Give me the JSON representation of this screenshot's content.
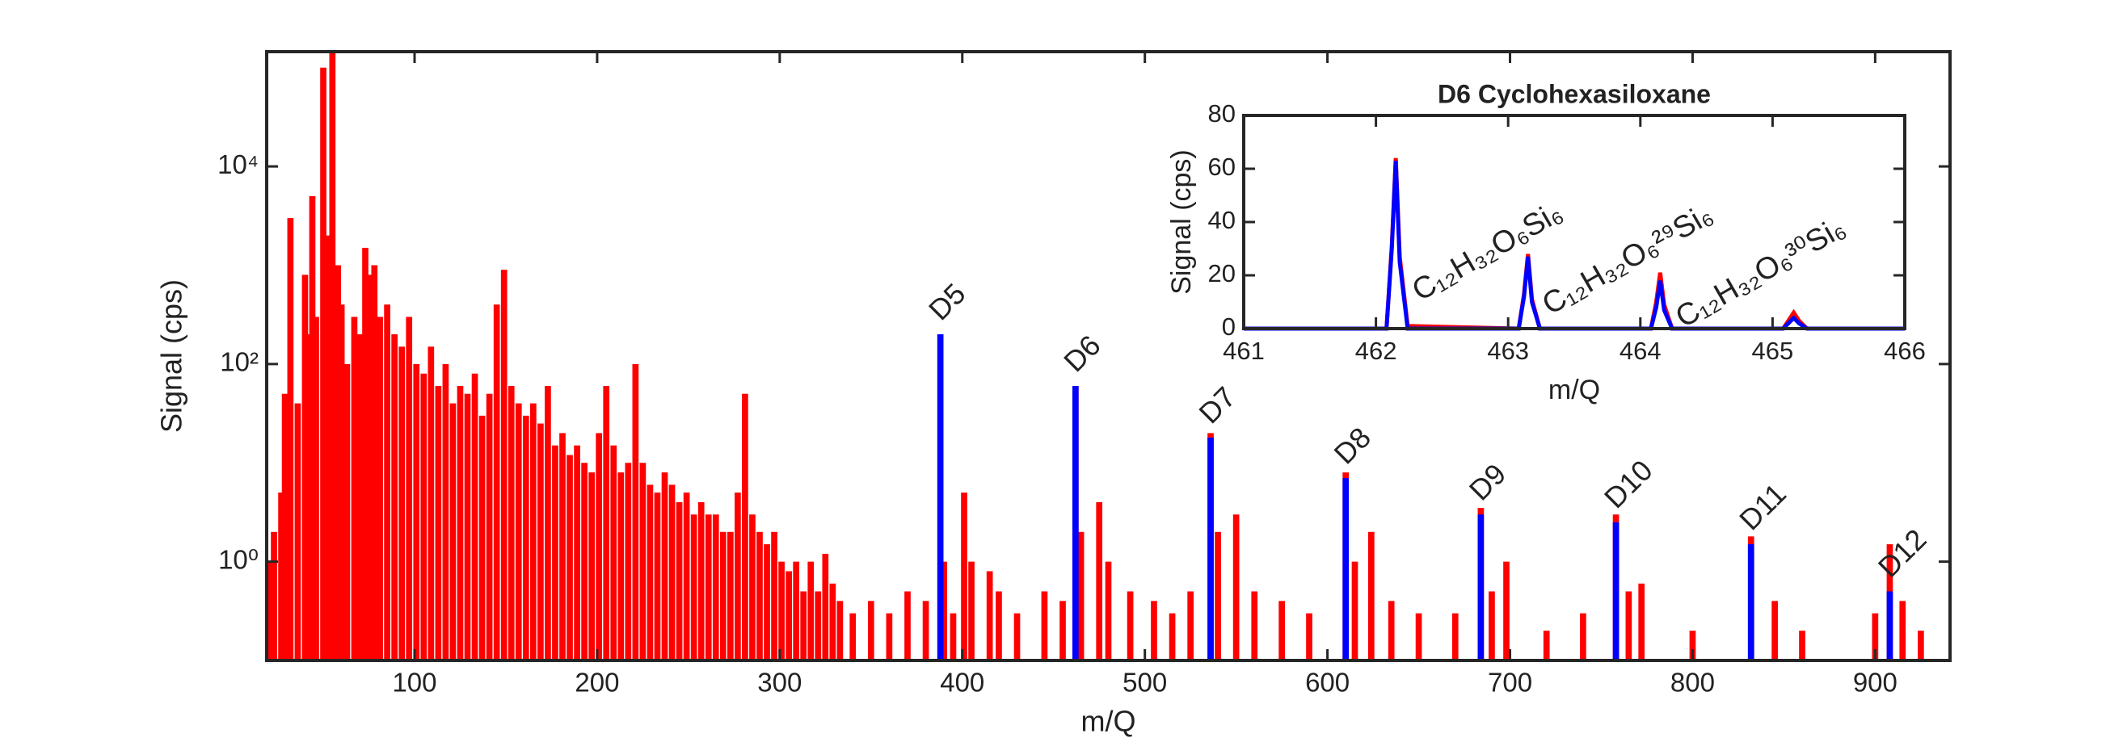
{
  "chart_data": [
    {
      "type": "bar",
      "xlabel": "m/Q",
      "ylabel": "Signal (cps)",
      "yscale": "log",
      "xlim": [
        19,
        941
      ],
      "ylim": [
        0.1,
        145000
      ],
      "xticks": [
        100,
        200,
        300,
        400,
        500,
        600,
        700,
        800,
        900
      ],
      "yticks": [
        {
          "value": 1,
          "label": "10⁰"
        },
        {
          "value": 100,
          "label": "10²"
        },
        {
          "value": 10000,
          "label": "10⁴"
        }
      ],
      "series": [
        {
          "color": "#ff0000",
          "x": [
            20,
            23,
            27,
            29,
            32,
            36,
            40,
            42,
            44,
            46,
            50,
            53,
            55,
            58,
            60,
            63,
            67,
            70,
            73,
            75,
            78,
            81,
            85,
            89,
            93,
            97,
            101,
            105,
            109,
            113,
            117,
            121,
            125,
            129,
            133,
            137,
            141,
            145,
            149,
            153,
            157,
            161,
            165,
            169,
            173,
            177,
            181,
            185,
            189,
            193,
            197,
            201,
            205,
            209,
            213,
            217,
            221,
            225,
            229,
            233,
            237,
            241,
            245,
            249,
            253,
            257,
            261,
            265,
            269,
            273,
            277,
            281,
            285,
            289,
            293,
            297,
            301,
            305,
            309,
            313,
            317,
            321,
            325,
            329,
            333,
            340,
            350,
            360,
            370,
            380,
            390,
            395,
            401,
            405,
            415,
            420,
            430,
            445,
            455,
            462,
            465,
            475,
            480,
            492,
            505,
            515,
            525,
            536,
            540,
            550,
            560,
            575,
            590,
            610,
            615,
            624,
            635,
            650,
            670,
            684,
            690,
            698,
            720,
            740,
            758,
            765,
            772,
            800,
            832,
            845,
            860,
            900,
            908,
            915,
            925
          ],
          "values": [
            1,
            2,
            5,
            50,
            3000,
            40,
            800,
            200,
            5000,
            300,
            100000,
            2000,
            140000,
            1000,
            400,
            100,
            300,
            200,
            1500,
            800,
            1000,
            300,
            400,
            200,
            150,
            300,
            100,
            80,
            150,
            60,
            100,
            40,
            60,
            50,
            80,
            30,
            50,
            400,
            900,
            60,
            40,
            30,
            40,
            25,
            60,
            15,
            20,
            12,
            15,
            10,
            8,
            20,
            60,
            15,
            8,
            10,
            100,
            10,
            6,
            5,
            8,
            6,
            4,
            5,
            3,
            4,
            3,
            3,
            2,
            2,
            5,
            50,
            3,
            2,
            1.5,
            2,
            1,
            0.8,
            1,
            0.5,
            1,
            0.5,
            1.2,
            0.6,
            0.4,
            0.3,
            0.4,
            0.3,
            0.5,
            0.4,
            1,
            0.3,
            5,
            1,
            0.8,
            0.5,
            0.3,
            0.5,
            0.4,
            60,
            2,
            4,
            1,
            0.5,
            0.4,
            0.3,
            0.5,
            20,
            2,
            3,
            0.5,
            0.4,
            0.3,
            8,
            1,
            2,
            0.4,
            0.3,
            0.3,
            3.5,
            0.5,
            1,
            0.2,
            0.3,
            3,
            0.5,
            0.6,
            0.2,
            1.8,
            0.4,
            0.2,
            0.3,
            1.5,
            0.4,
            0.2
          ]
        },
        {
          "color": "#0000ff",
          "x": [
            388,
            462,
            536,
            610,
            684,
            758,
            832,
            908
          ],
          "values": [
            200,
            60,
            18,
            7,
            3,
            2.5,
            1.5,
            0.5
          ],
          "labels": [
            "D5",
            "D6",
            "D7",
            "D8",
            "D9",
            "D10",
            "D11",
            "D12"
          ]
        }
      ]
    },
    {
      "type": "line",
      "title": "D6 Cyclohexasiloxane",
      "xlabel": "m/Q",
      "ylabel": "Signal (cps)",
      "xlim": [
        461,
        466
      ],
      "ylim": [
        0,
        80
      ],
      "xticks": [
        461,
        462,
        463,
        464,
        465,
        466
      ],
      "yticks": [
        0,
        20,
        40,
        60,
        80
      ],
      "x": [
        461,
        462.08,
        462.12,
        462.15,
        462.18,
        462.24,
        463.08,
        463.12,
        463.15,
        463.18,
        463.24,
        464.08,
        464.12,
        464.15,
        464.18,
        464.24,
        465.08,
        465.12,
        465.16,
        465.2,
        465.26,
        466
      ],
      "series": [
        {
          "color": "#ff0000",
          "values": [
            0,
            0,
            31,
            64,
            27,
            1,
            0,
            13,
            28,
            11,
            0,
            0,
            10,
            21,
            9,
            0,
            0,
            3,
            6,
            3,
            0,
            0
          ]
        },
        {
          "color": "#0000ff",
          "values": [
            0,
            0,
            30,
            63,
            25,
            0,
            0,
            12,
            27,
            10,
            0,
            0,
            8,
            18,
            7,
            0,
            0,
            2,
            4,
            2,
            0,
            0
          ]
        }
      ],
      "annotations": [
        "C₁₂H₃₂O₆Si₆",
        "C₁₂H₃₂O₆²⁹Si₆",
        "C₁₂H₃₂O₆³⁰Si₆"
      ]
    }
  ]
}
